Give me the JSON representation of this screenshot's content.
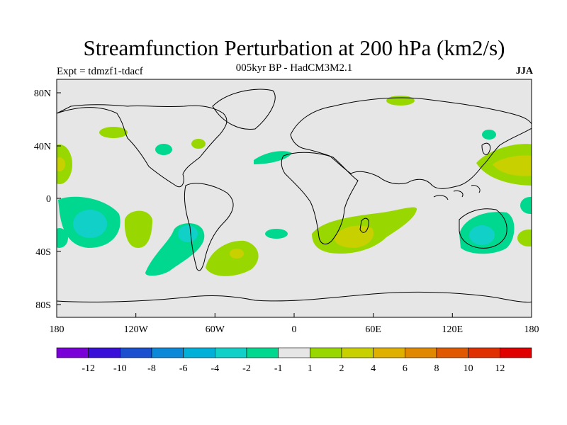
{
  "title": "Streamfunction Perturbation at 200 hPa (km2/s)",
  "subtitle": "005kyr BP - HadCM3M2.1",
  "experiment": "Expt = tdmzf1-tdacf",
  "season": "JJA",
  "map": {
    "x_ticks": [
      "180",
      "120W",
      "60W",
      "0",
      "60E",
      "120E",
      "180"
    ],
    "y_ticks": [
      "80N",
      "40N",
      "0",
      "40S",
      "80S"
    ]
  },
  "colorbar": {
    "labels": [
      "-12",
      "-10",
      "-8",
      "-6",
      "-4",
      "-2",
      "-1",
      "1",
      "2",
      "4",
      "6",
      "8",
      "10",
      "12"
    ],
    "colors": [
      "#7a00d8",
      "#3a10d8",
      "#1a50d0",
      "#0c88d8",
      "#00b0d8",
      "#10d0c8",
      "#00d890",
      "#e6e6e6",
      "#98d800",
      "#c8d000",
      "#e0b000",
      "#e08800",
      "#e05800",
      "#e03000",
      "#e00000"
    ]
  },
  "colors": {
    "land_outline": "#000000",
    "neutral": "#e6e6e6",
    "pos1": "#98d800",
    "pos2": "#c8d000",
    "neg1": "#00d890",
    "neg2": "#10d0c8"
  }
}
